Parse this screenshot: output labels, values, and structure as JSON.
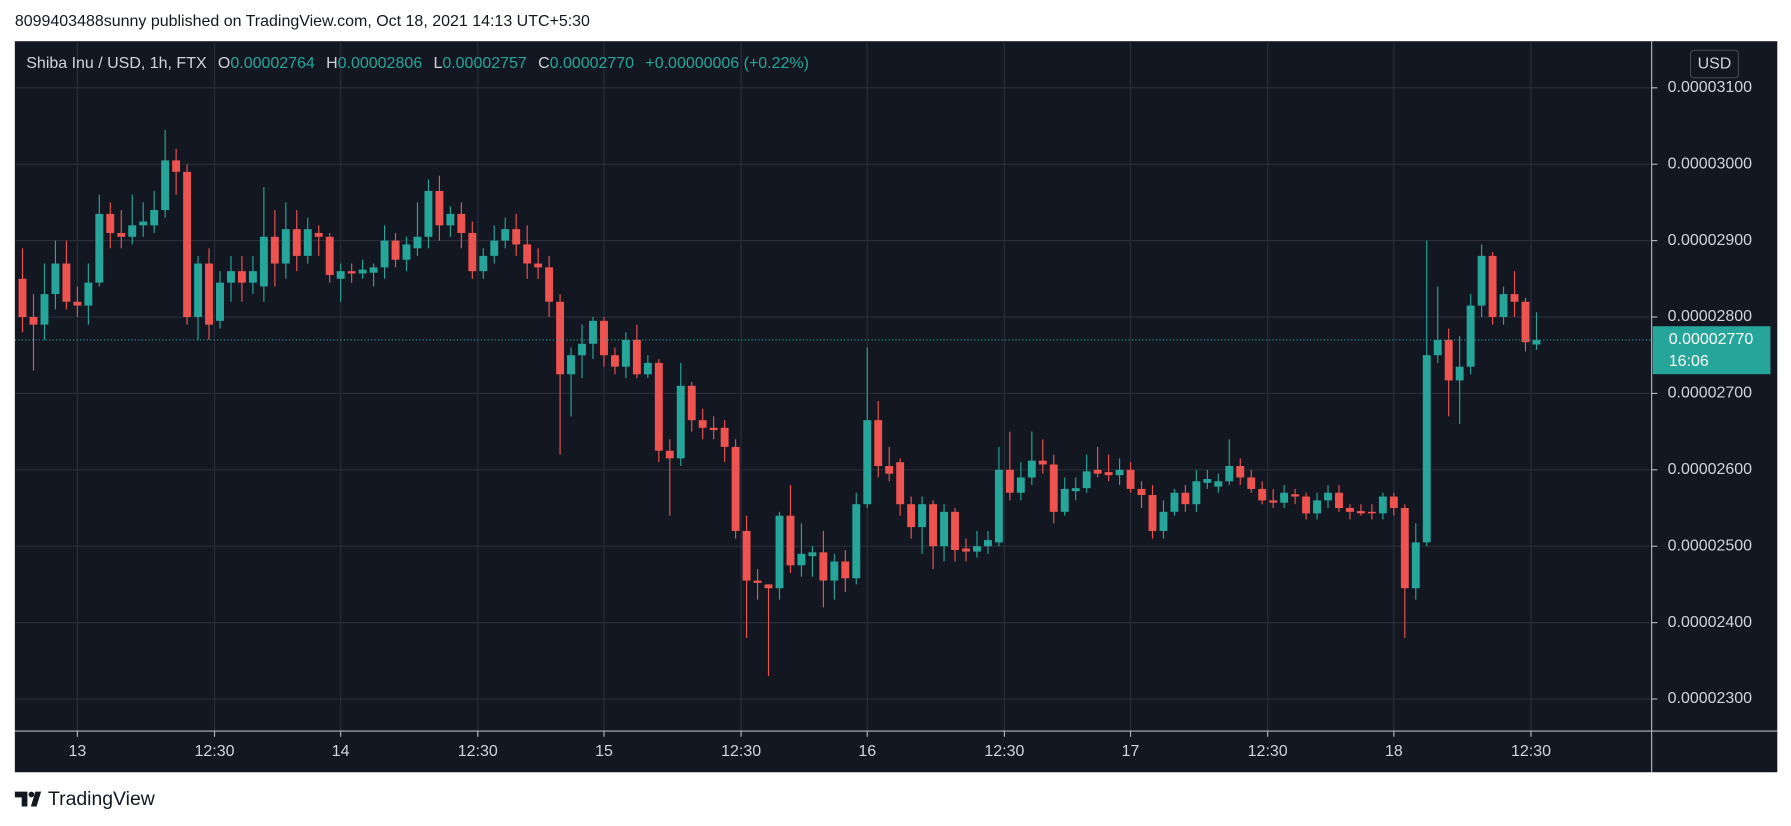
{
  "attribution": "8099403488sunny published on TradingView.com, Oct 18, 2021 14:13 UTC+5:30",
  "footer": "TradingView",
  "chart_data": {
    "type": "candlestick",
    "legend": {
      "symbol": "Shiba Inu / USD, 1h, FTX",
      "open_label": "O",
      "open": "0.00002764",
      "high_label": "H",
      "high": "0.00002806",
      "low_label": "L",
      "low": "0.00002757",
      "close_label": "C",
      "close": "0.00002770",
      "change": "+0.00000006 (+0.22%)"
    },
    "currency": "USD",
    "price_tag": {
      "price": "0.00002770",
      "countdown": "16:06"
    },
    "up_color": "#26a69a",
    "down_color": "#ef5350",
    "grid": true,
    "xlim": [
      -0.7,
      148.5
    ],
    "xticks": [
      {
        "value": 5,
        "label": "13"
      },
      {
        "value": 17.5,
        "label": "12:30"
      },
      {
        "value": 29,
        "label": "14"
      },
      {
        "value": 41.5,
        "label": "12:30"
      },
      {
        "value": 53,
        "label": "15"
      },
      {
        "value": 65.5,
        "label": "12:30"
      },
      {
        "value": 77,
        "label": "16"
      },
      {
        "value": 89.5,
        "label": "12:30"
      },
      {
        "value": 101,
        "label": "17"
      },
      {
        "value": 113.5,
        "label": "12:30"
      },
      {
        "value": 125,
        "label": "18"
      },
      {
        "value": 137.5,
        "label": "12:30"
      }
    ],
    "ylim": [
      2.258e-05,
      3.161e-05
    ],
    "yticks": [
      {
        "value": 2.3e-05,
        "label": "0.00002300"
      },
      {
        "value": 2.4e-05,
        "label": "0.00002400"
      },
      {
        "value": 2.5e-05,
        "label": "0.00002500"
      },
      {
        "value": 2.6e-05,
        "label": "0.00002600"
      },
      {
        "value": 2.7e-05,
        "label": "0.00002700"
      },
      {
        "value": 2.8e-05,
        "label": "0.00002800"
      },
      {
        "value": 2.9e-05,
        "label": "0.00002900"
      },
      {
        "value": 3e-05,
        "label": "0.00003000"
      },
      {
        "value": 3.1e-05,
        "label": "0.00003100"
      }
    ],
    "open": [
      2.85e-05,
      2.8e-05,
      2.79e-05,
      2.83e-05,
      2.87e-05,
      2.82e-05,
      2.815e-05,
      2.845e-05,
      2.935e-05,
      2.91e-05,
      2.905e-05,
      2.92e-05,
      2.92e-05,
      2.94e-05,
      3.005e-05,
      2.99e-05,
      2.8e-05,
      2.87e-05,
      2.795e-05,
      2.845e-05,
      2.86e-05,
      2.845e-05,
      2.84e-05,
      2.905e-05,
      2.87e-05,
      2.915e-05,
      2.88e-05,
      2.91e-05,
      2.905e-05,
      2.85e-05,
      2.86e-05,
      2.857e-05,
      2.858e-05,
      2.865e-05,
      2.9e-05,
      2.875e-05,
      2.89e-05,
      2.905e-05,
      2.965e-05,
      2.92e-05,
      2.935e-05,
      2.91e-05,
      2.86e-05,
      2.88e-05,
      2.9e-05,
      2.915e-05,
      2.895e-05,
      2.87e-05,
      2.865e-05,
      2.82e-05,
      2.725e-05,
      2.75e-05,
      2.765e-05,
      2.795e-05,
      2.75e-05,
      2.735e-05,
      2.77e-05,
      2.725e-05,
      2.74e-05,
      2.625e-05,
      2.615e-05,
      2.71e-05,
      2.665e-05,
      2.655e-05,
      2.655e-05,
      2.63e-05,
      2.52e-05,
      2.455e-05,
      2.45e-05,
      2.445e-05,
      2.54e-05,
      2.475e-05,
      2.487e-05,
      2.492e-05,
      2.455e-05,
      2.48e-05,
      2.458e-05,
      2.555e-05,
      2.665e-05,
      2.605e-05,
      2.61e-05,
      2.555e-05,
      2.525e-05,
      2.555e-05,
      2.5e-05,
      2.545e-05,
      2.497e-05,
      2.493e-05,
      2.5e-05,
      2.505e-05,
      2.6e-05,
      2.57e-05,
      2.59e-05,
      2.612e-05,
      2.607e-05,
      2.545e-05,
      2.572e-05,
      2.576e-05,
      2.6e-05,
      2.597e-05,
      2.593e-05,
      2.6e-05,
      2.575e-05,
      2.567e-05,
      2.52e-05,
      2.545e-05,
      2.57e-05,
      2.555e-05,
      2.583e-05,
      2.578e-05,
      2.585e-05,
      2.605e-05,
      2.59e-05,
      2.575e-05,
      2.56e-05,
      2.557e-05,
      2.568e-05,
      2.565e-05,
      2.543e-05,
      2.56e-05,
      2.57e-05,
      2.55e-05,
      2.546e-05,
      2.545e-05,
      2.543e-05,
      2.565e-05,
      2.55e-05,
      2.445e-05,
      2.505e-05,
      2.75e-05,
      2.77e-05,
      2.717e-05,
      2.735e-05,
      2.815e-05,
      2.88e-05,
      2.8e-05,
      2.83e-05,
      2.82e-05,
      2.764e-05
    ],
    "high": [
      2.89e-05,
      2.83e-05,
      2.87e-05,
      2.9e-05,
      2.9e-05,
      2.84e-05,
      2.87e-05,
      2.96e-05,
      2.95e-05,
      2.94e-05,
      2.96e-05,
      2.95e-05,
      2.965e-05,
      3.045e-05,
      3.02e-05,
      3e-05,
      2.88e-05,
      2.89e-05,
      2.86e-05,
      2.88e-05,
      2.88e-05,
      2.88e-05,
      2.97e-05,
      2.94e-05,
      2.95e-05,
      2.94e-05,
      2.93e-05,
      2.92e-05,
      2.91e-05,
      2.87e-05,
      2.87e-05,
      2.875e-05,
      2.87e-05,
      2.92e-05,
      2.91e-05,
      2.905e-05,
      2.95e-05,
      2.98e-05,
      2.985e-05,
      2.945e-05,
      2.95e-05,
      2.925e-05,
      2.89e-05,
      2.92e-05,
      2.93e-05,
      2.935e-05,
      2.92e-05,
      2.89e-05,
      2.88e-05,
      2.83e-05,
      2.76e-05,
      2.79e-05,
      2.8e-05,
      2.8e-05,
      2.76e-05,
      2.78e-05,
      2.79e-05,
      2.75e-05,
      2.745e-05,
      2.64e-05,
      2.74e-05,
      2.715e-05,
      2.68e-05,
      2.67e-05,
      2.665e-05,
      2.64e-05,
      2.54e-05,
      2.47e-05,
      2.45e-05,
      2.545e-05,
      2.58e-05,
      2.53e-05,
      2.5e-05,
      2.52e-05,
      2.49e-05,
      2.495e-05,
      2.57e-05,
      2.76e-05,
      2.69e-05,
      2.63e-05,
      2.615e-05,
      2.565e-05,
      2.565e-05,
      2.56e-05,
      2.555e-05,
      2.55e-05,
      2.51e-05,
      2.52e-05,
      2.52e-05,
      2.63e-05,
      2.65e-05,
      2.61e-05,
      2.65e-05,
      2.64e-05,
      2.62e-05,
      2.59e-05,
      2.59e-05,
      2.62e-05,
      2.63e-05,
      2.62e-05,
      2.615e-05,
      2.61e-05,
      2.585e-05,
      2.58e-05,
      2.56e-05,
      2.575e-05,
      2.58e-05,
      2.6e-05,
      2.6e-05,
      2.595e-05,
      2.64e-05,
      2.615e-05,
      2.6e-05,
      2.585e-05,
      2.575e-05,
      2.58e-05,
      2.575e-05,
      2.57e-05,
      2.57e-05,
      2.58e-05,
      2.58e-05,
      2.555e-05,
      2.555e-05,
      2.555e-05,
      2.57e-05,
      2.57e-05,
      2.555e-05,
      2.53e-05,
      2.9e-05,
      2.84e-05,
      2.785e-05,
      2.775e-05,
      2.83e-05,
      2.895e-05,
      2.885e-05,
      2.84e-05,
      2.86e-05,
      2.825e-05,
      2.806e-05
    ],
    "low": [
      2.78e-05,
      2.73e-05,
      2.77e-05,
      2.81e-05,
      2.81e-05,
      2.8e-05,
      2.79e-05,
      2.84e-05,
      2.89e-05,
      2.89e-05,
      2.895e-05,
      2.905e-05,
      2.91e-05,
      2.93e-05,
      2.96e-05,
      2.79e-05,
      2.77e-05,
      2.77e-05,
      2.785e-05,
      2.82e-05,
      2.82e-05,
      2.83e-05,
      2.82e-05,
      2.84e-05,
      2.85e-05,
      2.86e-05,
      2.87e-05,
      2.88e-05,
      2.845e-05,
      2.82e-05,
      2.845e-05,
      2.85e-05,
      2.84e-05,
      2.85e-05,
      2.865e-05,
      2.86e-05,
      2.88e-05,
      2.89e-05,
      2.9e-05,
      2.905e-05,
      2.89e-05,
      2.85e-05,
      2.85e-05,
      2.87e-05,
      2.89e-05,
      2.88e-05,
      2.85e-05,
      2.85e-05,
      2.8e-05,
      2.62e-05,
      2.67e-05,
      2.72e-05,
      2.745e-05,
      2.735e-05,
      2.725e-05,
      2.72e-05,
      2.72e-05,
      2.72e-05,
      2.61e-05,
      2.54e-05,
      2.605e-05,
      2.65e-05,
      2.64e-05,
      2.64e-05,
      2.61e-05,
      2.51e-05,
      2.38e-05,
      2.43e-05,
      2.33e-05,
      2.43e-05,
      2.465e-05,
      2.46e-05,
      2.46e-05,
      2.42e-05,
      2.43e-05,
      2.44e-05,
      2.45e-05,
      2.55e-05,
      2.59e-05,
      2.585e-05,
      2.54e-05,
      2.51e-05,
      2.49e-05,
      2.47e-05,
      2.48e-05,
      2.48e-05,
      2.48e-05,
      2.485e-05,
      2.49e-05,
      2.5e-05,
      2.56e-05,
      2.56e-05,
      2.58e-05,
      2.595e-05,
      2.53e-05,
      2.54e-05,
      2.56e-05,
      2.57e-05,
      2.59e-05,
      2.585e-05,
      2.58e-05,
      2.57e-05,
      2.55e-05,
      2.51e-05,
      2.51e-05,
      2.54e-05,
      2.545e-05,
      2.545e-05,
      2.575e-05,
      2.57e-05,
      2.58e-05,
      2.58e-05,
      2.57e-05,
      2.555e-05,
      2.55e-05,
      2.55e-05,
      2.555e-05,
      2.535e-05,
      2.535e-05,
      2.55e-05,
      2.545e-05,
      2.535e-05,
      2.54e-05,
      2.535e-05,
      2.535e-05,
      2.54e-05,
      2.38e-05,
      2.43e-05,
      2.5e-05,
      2.74e-05,
      2.67e-05,
      2.66e-05,
      2.725e-05,
      2.8e-05,
      2.79e-05,
      2.79e-05,
      2.8e-05,
      2.755e-05,
      2.757e-05
    ],
    "close": [
      2.8e-05,
      2.79e-05,
      2.83e-05,
      2.87e-05,
      2.82e-05,
      2.815e-05,
      2.845e-05,
      2.935e-05,
      2.91e-05,
      2.905e-05,
      2.92e-05,
      2.925e-05,
      2.94e-05,
      3.005e-05,
      2.99e-05,
      2.8e-05,
      2.87e-05,
      2.79e-05,
      2.845e-05,
      2.86e-05,
      2.845e-05,
      2.86e-05,
      2.905e-05,
      2.87e-05,
      2.915e-05,
      2.88e-05,
      2.915e-05,
      2.905e-05,
      2.855e-05,
      2.86e-05,
      2.857e-05,
      2.862e-05,
      2.865e-05,
      2.9e-05,
      2.875e-05,
      2.895e-05,
      2.905e-05,
      2.965e-05,
      2.92e-05,
      2.935e-05,
      2.91e-05,
      2.86e-05,
      2.88e-05,
      2.9e-05,
      2.915e-05,
      2.895e-05,
      2.87e-05,
      2.865e-05,
      2.82e-05,
      2.725e-05,
      2.75e-05,
      2.765e-05,
      2.795e-05,
      2.75e-05,
      2.735e-05,
      2.77e-05,
      2.725e-05,
      2.74e-05,
      2.625e-05,
      2.615e-05,
      2.71e-05,
      2.665e-05,
      2.655e-05,
      2.652e-05,
      2.63e-05,
      2.52e-05,
      2.455e-05,
      2.452e-05,
      2.445e-05,
      2.54e-05,
      2.475e-05,
      2.49e-05,
      2.492e-05,
      2.455e-05,
      2.48e-05,
      2.458e-05,
      2.555e-05,
      2.665e-05,
      2.605e-05,
      2.595e-05,
      2.555e-05,
      2.525e-05,
      2.555e-05,
      2.5e-05,
      2.545e-05,
      2.495e-05,
      2.493e-05,
      2.5e-05,
      2.508e-05,
      2.6e-05,
      2.57e-05,
      2.59e-05,
      2.612e-05,
      2.607e-05,
      2.545e-05,
      2.575e-05,
      2.576e-05,
      2.598e-05,
      2.595e-05,
      2.593e-05,
      2.6e-05,
      2.575e-05,
      2.567e-05,
      2.52e-05,
      2.545e-05,
      2.57e-05,
      2.555e-05,
      2.585e-05,
      2.588e-05,
      2.585e-05,
      2.605e-05,
      2.59e-05,
      2.575e-05,
      2.56e-05,
      2.557e-05,
      2.57e-05,
      2.565e-05,
      2.543e-05,
      2.56e-05,
      2.57e-05,
      2.55e-05,
      2.545e-05,
      2.543e-05,
      2.543e-05,
      2.565e-05,
      2.55e-05,
      2.445e-05,
      2.505e-05,
      2.75e-05,
      2.77e-05,
      2.717e-05,
      2.735e-05,
      2.815e-05,
      2.88e-05,
      2.8e-05,
      2.83e-05,
      2.82e-05,
      2.767e-05,
      2.77e-05
    ]
  }
}
